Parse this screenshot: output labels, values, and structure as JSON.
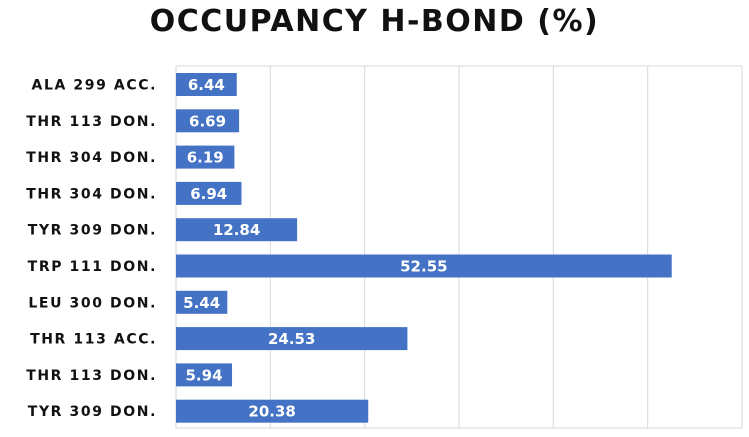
{
  "chart_data": {
    "type": "bar",
    "orientation": "horizontal",
    "title": "OCCUPANCY H-BOND (%)",
    "xlabel": "",
    "ylabel": "",
    "categories": [
      "ALA 299 ACC.",
      "THR 113 DON.",
      "THR 304  DON.",
      "THR 304  DON.",
      "TYR 309 DON.",
      "TRP 111 DON.",
      "LEU 300 DON.",
      "THR 113 ACC.",
      "THR 113 DON.",
      "TYR 309 DON."
    ],
    "values": [
      6.44,
      6.69,
      6.19,
      6.94,
      12.84,
      52.55,
      5.44,
      24.53,
      5.94,
      20.38
    ],
    "data_labels": [
      "6.44",
      "6.69",
      "6.19",
      "6.94",
      "12.84",
      "52.55",
      "5.44",
      "24.53",
      "5.94",
      "20.38"
    ],
    "xlim": [
      0,
      60
    ],
    "grid": "vertical",
    "legend": "none",
    "bar_color": "#4472C4",
    "grid_color": "#d9d9d9"
  }
}
